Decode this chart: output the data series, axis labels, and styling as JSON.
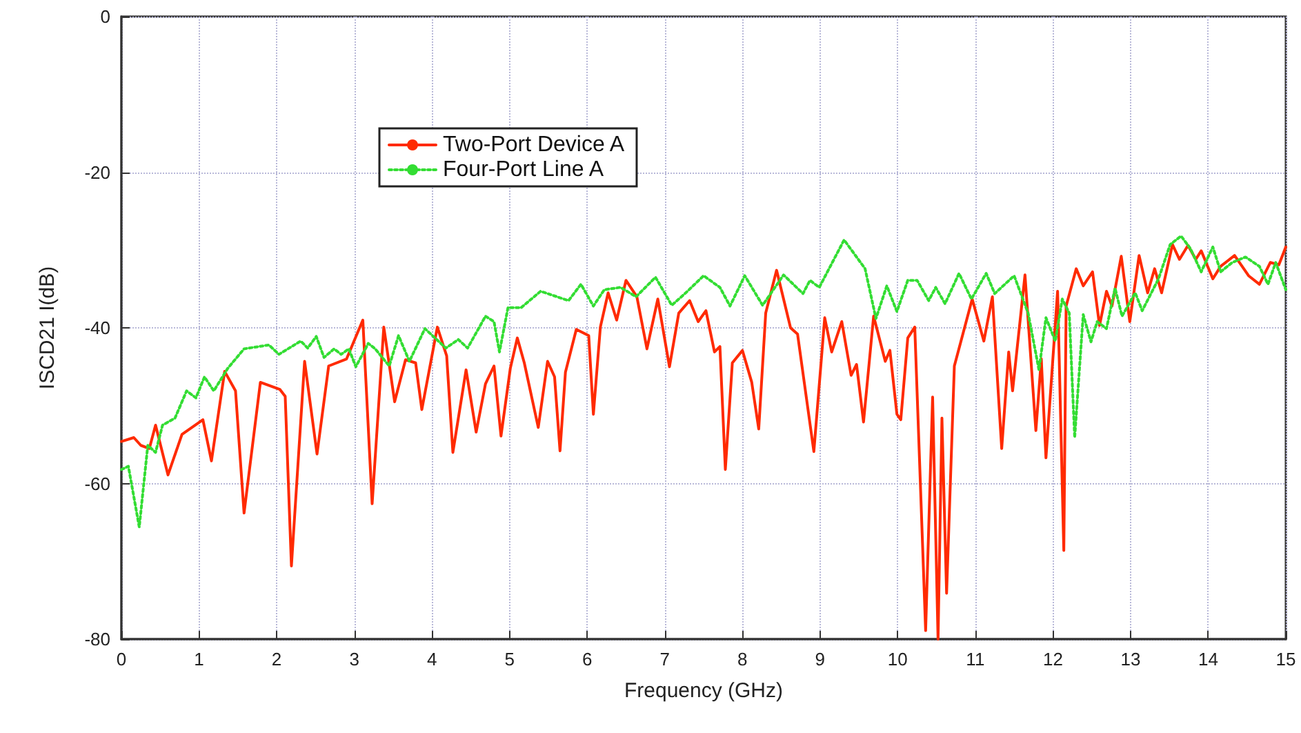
{
  "chart_data": {
    "type": "line",
    "xlabel": "Frequency (GHz)",
    "ylabel": "ISCD21 I(dB)",
    "xlim": [
      0,
      15
    ],
    "xticks": [
      0,
      1,
      2,
      3,
      4,
      5,
      6,
      7,
      8,
      9,
      10,
      11,
      12,
      13,
      14,
      15
    ],
    "ylim": [
      -80,
      0
    ],
    "yticks": [
      -80,
      -60,
      -40,
      -20,
      0
    ],
    "grid": true,
    "legend": "top left",
    "marker": "none",
    "series": [
      {
        "name": "Two-Port Device A",
        "color": "#ff2a00",
        "line_style": "solid",
        "x": [
          0,
          0.16,
          0.25,
          0.36,
          0.44,
          0.6,
          0.78,
          1.05,
          1.16,
          1.33,
          1.47,
          1.58,
          1.79,
          2.04,
          2.11,
          2.19,
          2.36,
          2.52,
          2.67,
          2.9,
          3.11,
          3.23,
          3.38,
          3.52,
          3.66,
          3.79,
          3.87,
          4.07,
          4.19,
          4.27,
          4.44,
          4.57,
          4.69,
          4.8,
          4.89,
          5.01,
          5.1,
          5.19,
          5.37,
          5.49,
          5.58,
          5.65,
          5.72,
          5.86,
          6.02,
          6.08,
          6.17,
          6.27,
          6.38,
          6.5,
          6.64,
          6.77,
          6.91,
          7.06,
          7.18,
          7.32,
          7.43,
          7.53,
          7.64,
          7.71,
          7.78,
          7.87,
          8.0,
          8.12,
          8.21,
          8.3,
          8.44,
          8.62,
          8.71,
          8.92,
          9.06,
          9.15,
          9.28,
          9.4,
          9.47,
          9.56,
          9.69,
          9.84,
          9.9,
          9.99,
          10.04,
          10.13,
          10.22,
          10.36,
          10.45,
          10.52,
          10.57,
          10.63,
          10.73,
          10.96,
          11.11,
          11.22,
          11.34,
          11.43,
          11.48,
          11.64,
          11.78,
          11.85,
          11.91,
          12.06,
          12.14,
          12.17,
          12.3,
          12.39,
          12.51,
          12.6,
          12.69,
          12.76,
          12.88,
          12.99,
          13.11,
          13.22,
          13.31,
          13.4,
          13.54,
          13.63,
          13.74,
          13.84,
          13.91,
          14.06,
          14.16,
          14.34,
          14.52,
          14.66,
          14.8,
          14.91,
          15
        ],
        "values": [
          -54.6,
          -54.1,
          -55.1,
          -55.5,
          -52.5,
          -58.9,
          -53.7,
          -51.8,
          -57.1,
          -45.6,
          -48.1,
          -63.8,
          -47,
          -47.9,
          -48.8,
          -70.6,
          -44.3,
          -56.2,
          -44.9,
          -44,
          -39,
          -62.6,
          -39.9,
          -49.5,
          -44.1,
          -44.5,
          -50.5,
          -39.9,
          -43.6,
          -56,
          -45.4,
          -53.4,
          -47.2,
          -44.9,
          -53.9,
          -45.2,
          -41.3,
          -44.5,
          -52.8,
          -44.3,
          -46.3,
          -55.8,
          -45.7,
          -40.2,
          -41,
          -51.1,
          -39.9,
          -35.5,
          -39,
          -33.9,
          -36,
          -42.7,
          -36.3,
          -45,
          -38.1,
          -36.5,
          -39.2,
          -37.8,
          -43.1,
          -42.4,
          -58.2,
          -44.5,
          -42.9,
          -47,
          -53,
          -38.1,
          -32.6,
          -40,
          -40.8,
          -55.9,
          -38.7,
          -43.1,
          -39.2,
          -46.1,
          -44.7,
          -52.1,
          -38.5,
          -44.3,
          -42.9,
          -51.1,
          -51.8,
          -41.3,
          -39.9,
          -78.9,
          -48.9,
          -80,
          -51.6,
          -74.1,
          -44.9,
          -36.3,
          -41.7,
          -36,
          -55.5,
          -43.1,
          -48.1,
          -33.2,
          -53.2,
          -44,
          -56.7,
          -35.3,
          -68.6,
          -37.2,
          -32.4,
          -34.6,
          -32.8,
          -39.7,
          -35.3,
          -37.2,
          -30.8,
          -39.2,
          -30.7,
          -35.5,
          -32.4,
          -35.5,
          -29.3,
          -31.2,
          -29.4,
          -31.2,
          -30.1,
          -33.7,
          -32.1,
          -30.7,
          -33.3,
          -34.4,
          -31.6,
          -31.9,
          -29.6
        ]
      },
      {
        "name": "Four-Port Line A",
        "color": "#33dd33",
        "line_style": "dotted",
        "x": [
          0,
          0.09,
          0.23,
          0.34,
          0.44,
          0.53,
          0.69,
          0.84,
          0.96,
          1.07,
          1.19,
          1.37,
          1.58,
          1.9,
          2.03,
          2.31,
          2.4,
          2.51,
          2.61,
          2.74,
          2.83,
          2.93,
          3.02,
          3.18,
          3.27,
          3.45,
          3.57,
          3.71,
          3.91,
          4.18,
          4.34,
          4.46,
          4.69,
          4.8,
          4.87,
          4.98,
          5.15,
          5.4,
          5.76,
          5.92,
          6.08,
          6.22,
          6.43,
          6.63,
          6.88,
          7.09,
          7.27,
          7.5,
          7.71,
          7.84,
          8.03,
          8.26,
          8.53,
          8.78,
          8.87,
          8.99,
          9.31,
          9.58,
          9.72,
          9.86,
          9.99,
          10.13,
          10.25,
          10.4,
          10.49,
          10.61,
          10.79,
          10.95,
          11.14,
          11.25,
          11.5,
          11.68,
          11.82,
          11.91,
          12.03,
          12.12,
          12.21,
          12.28,
          12.39,
          12.49,
          12.57,
          12.69,
          12.8,
          12.89,
          13.06,
          13.15,
          13.36,
          13.51,
          13.65,
          13.77,
          13.91,
          14.06,
          14.16,
          14.31,
          14.48,
          14.66,
          14.77,
          14.87,
          15
        ],
        "values": [
          -58.2,
          -57.8,
          -65.6,
          -55.1,
          -56,
          -52.5,
          -51.6,
          -48.1,
          -49,
          -46.3,
          -48.1,
          -45.2,
          -42.7,
          -42.2,
          -43.4,
          -41.7,
          -42.6,
          -41.1,
          -43.8,
          -42.7,
          -43.4,
          -42.7,
          -45,
          -42,
          -42.7,
          -44.9,
          -41,
          -44.3,
          -40.1,
          -42.6,
          -41.5,
          -42.6,
          -38.5,
          -39.2,
          -43.1,
          -37.4,
          -37.4,
          -35.3,
          -36.5,
          -34.4,
          -37.2,
          -35.1,
          -34.8,
          -36,
          -33.5,
          -37.1,
          -35.5,
          -33.3,
          -34.8,
          -37.2,
          -33.3,
          -37.1,
          -33.2,
          -35.6,
          -33.9,
          -34.8,
          -28.7,
          -32.4,
          -38.8,
          -34.6,
          -37.9,
          -33.9,
          -33.9,
          -36.5,
          -34.8,
          -36.9,
          -33,
          -36.3,
          -33,
          -35.6,
          -33.3,
          -38.1,
          -45.4,
          -38.7,
          -41.7,
          -36.3,
          -38.1,
          -54.1,
          -38.3,
          -41.8,
          -39.2,
          -40.1,
          -34.9,
          -38.5,
          -35.5,
          -37.8,
          -33.7,
          -29.3,
          -28.2,
          -29.8,
          -32.8,
          -29.6,
          -32.8,
          -31.6,
          -30.9,
          -32.1,
          -34.4,
          -31.6,
          -35.1
        ]
      }
    ]
  }
}
